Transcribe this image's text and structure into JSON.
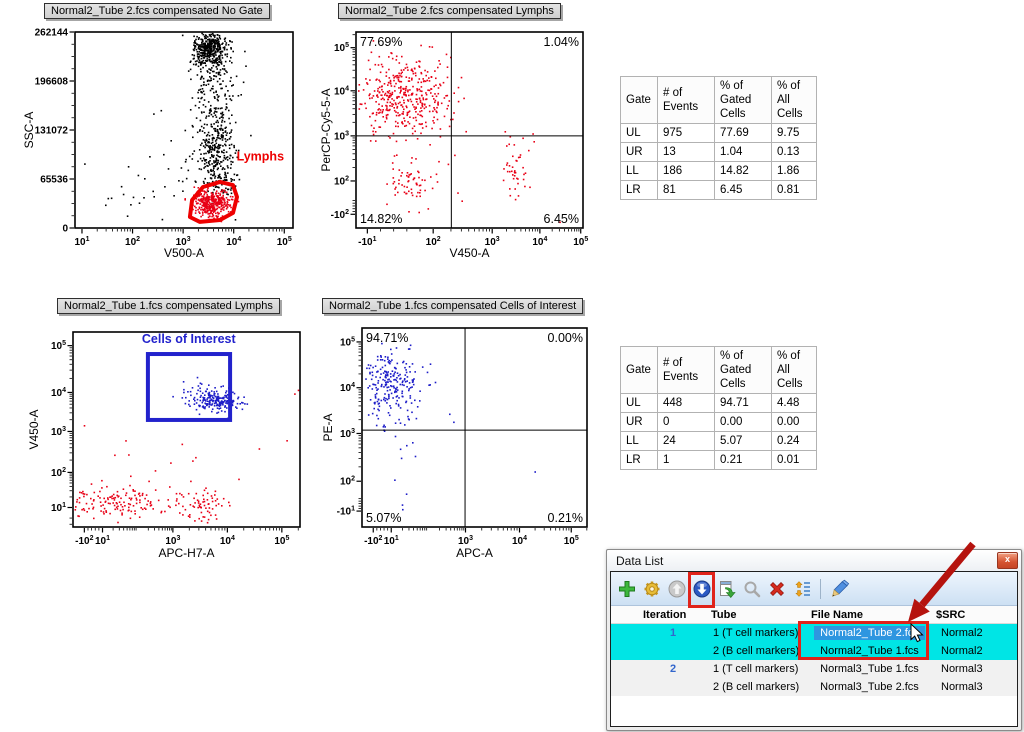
{
  "colors": {
    "dot_black": "#000000",
    "dot_red": "#e80016",
    "dot_blue": "#1c1cc8",
    "gate_red": "#ee0000",
    "gate_blue": "#2222cc",
    "highlight_cyan": "#00e5e5",
    "selection_blue": "#2e96e0",
    "annotation_red": "#c01412",
    "iteration_blue": "#3366cc"
  },
  "chart_data": {
    "plots": [
      {
        "id": "p1",
        "type": "scatter",
        "title": "Normal2_Tube 2.fcs compensated No Gate",
        "xlabel": "V500-A",
        "ylabel": "SSC-A",
        "x_scale": "log",
        "y_scale": "linear",
        "x_ticks": [
          {
            "f": 0.032,
            "l": "10^1"
          },
          {
            "f": 0.264,
            "l": "10^2"
          },
          {
            "f": 0.496,
            "l": "10^3"
          },
          {
            "f": 0.728,
            "l": "10^4"
          },
          {
            "f": 0.96,
            "l": "10^5"
          }
        ],
        "y_ticks": [
          {
            "f": 0.0,
            "l": "262144"
          },
          {
            "f": 0.25,
            "l": "196608"
          },
          {
            "f": 0.5,
            "l": "131072"
          },
          {
            "f": 0.75,
            "l": "65536"
          },
          {
            "f": 1.0,
            "l": "0"
          }
        ],
        "gate": {
          "shape": "polygon",
          "label": "Lymphs",
          "color": "#ee0000",
          "label_pos": [
            0.85,
            0.655
          ],
          "points": [
            [
              0.527,
              0.944
            ],
            [
              0.537,
              0.857
            ],
            [
              0.587,
              0.791
            ],
            [
              0.665,
              0.765
            ],
            [
              0.725,
              0.781
            ],
            [
              0.743,
              0.842
            ],
            [
              0.725,
              0.923
            ],
            [
              0.665,
              0.959
            ],
            [
              0.573,
              0.969
            ]
          ]
        },
        "quadrants": null,
        "seed": 7,
        "clusters": [
          {
            "fx": 0.62,
            "fy": 0.09,
            "sx": 0.035,
            "sy": 0.055,
            "n": 420,
            "color": "#000000"
          },
          {
            "fx": 0.63,
            "fy": 0.33,
            "sx": 0.05,
            "sy": 0.17,
            "n": 230,
            "color": "#000000"
          },
          {
            "fx": 0.655,
            "fy": 0.62,
            "sx": 0.045,
            "sy": 0.1,
            "n": 260,
            "color": "#000000"
          },
          {
            "fx": 0.45,
            "fy": 0.74,
            "sx": 0.13,
            "sy": 0.11,
            "n": 28,
            "color": "#000000"
          },
          {
            "fx": 0.25,
            "fy": 0.86,
            "sx": 0.09,
            "sy": 0.05,
            "n": 12,
            "color": "#000000"
          },
          {
            "fx": 0.67,
            "fy": 0.77,
            "sx": 0.035,
            "sy": 0.03,
            "n": 45,
            "color": "#000000"
          },
          {
            "fx": 0.63,
            "fy": 0.875,
            "sx": 0.042,
            "sy": 0.032,
            "n": 380,
            "color": "#e80016"
          }
        ]
      },
      {
        "id": "p2",
        "type": "scatter",
        "title": "Normal2_Tube 2.fcs compensated Lymphs",
        "xlabel": "V450-A",
        "ylabel": "PerCP-Cy5-5-A",
        "x_scale": "biexp",
        "y_scale": "biexp",
        "x_ticks": [
          {
            "f": 0.05,
            "l": "-10^1"
          },
          {
            "f": 0.34,
            "l": "10^2"
          },
          {
            "f": 0.6,
            "l": "10^3"
          },
          {
            "f": 0.81,
            "l": "10^4"
          },
          {
            "f": 0.99,
            "l": "10^5"
          }
        ],
        "y_ticks": [
          {
            "f": 0.08,
            "l": "10^5"
          },
          {
            "f": 0.3,
            "l": "10^4"
          },
          {
            "f": 0.53,
            "l": "10^3"
          },
          {
            "f": 0.76,
            "l": "10^2"
          },
          {
            "f": 0.93,
            "l": "-10^2"
          }
        ],
        "gate": null,
        "quadrants": {
          "v": 0.42,
          "h": 0.53,
          "UL": "77.69%",
          "UR": "1.04%",
          "LL": "14.82%",
          "LR": "6.45%"
        },
        "seed": 11,
        "clusters": [
          {
            "fx": 0.21,
            "fy": 0.33,
            "sx": 0.095,
            "sy": 0.1,
            "n": 420,
            "color": "#e80016"
          },
          {
            "fx": 0.25,
            "fy": 0.79,
            "sx": 0.055,
            "sy": 0.065,
            "n": 65,
            "color": "#e80016"
          },
          {
            "fx": 0.7,
            "fy": 0.72,
            "sx": 0.035,
            "sy": 0.1,
            "n": 42,
            "color": "#e80016"
          },
          {
            "fx": 0.5,
            "fy": 0.58,
            "sx": 0.25,
            "sy": 0.2,
            "n": 9,
            "color": "#e80016"
          },
          {
            "fx": 0.9,
            "fy": 0.975,
            "sx": 0.004,
            "sy": 0.004,
            "n": 1,
            "color": "#e80016"
          }
        ]
      },
      {
        "id": "p3",
        "type": "scatter",
        "title": "Normal2_Tube 1.fcs compensated Lymphs",
        "xlabel": "APC-H7-A",
        "ylabel": "V450-A",
        "x_scale": "biexp",
        "y_scale": "biexp",
        "x_ticks": [
          {
            "f": 0.05,
            "l": "-10^2"
          },
          {
            "f": 0.13,
            "l": "10^1"
          },
          {
            "f": 0.44,
            "l": "10^3"
          },
          {
            "f": 0.68,
            "l": "10^4"
          },
          {
            "f": 0.92,
            "l": "10^5"
          }
        ],
        "y_ticks": [
          {
            "f": 0.07,
            "l": "10^5"
          },
          {
            "f": 0.31,
            "l": "10^4"
          },
          {
            "f": 0.51,
            "l": "10^3"
          },
          {
            "f": 0.72,
            "l": "10^2"
          },
          {
            "f": 0.9,
            "l": "10^1"
          }
        ],
        "gate": {
          "shape": "rect",
          "label": "Cells of Interest",
          "color": "#2222cc",
          "label_pos": [
            0.51,
            0.056
          ],
          "x1": 0.33,
          "y1": 0.113,
          "x2": 0.692,
          "y2": 0.451
        },
        "quadrants": null,
        "seed": 23,
        "clusters": [
          {
            "fx": 0.2,
            "fy": 0.87,
            "sx": 0.13,
            "sy": 0.042,
            "n": 150,
            "color": "#e80016"
          },
          {
            "fx": 0.57,
            "fy": 0.885,
            "sx": 0.05,
            "sy": 0.055,
            "n": 65,
            "color": "#e80016"
          },
          {
            "fx": 0.33,
            "fy": 0.72,
            "sx": 0.18,
            "sy": 0.1,
            "n": 18,
            "color": "#e80016"
          },
          {
            "fx": 0.97,
            "fy": 0.34,
            "sx": 0.015,
            "sy": 0.02,
            "n": 2,
            "color": "#e80016"
          },
          {
            "fx": 0.625,
            "fy": 0.35,
            "sx": 0.05,
            "sy": 0.028,
            "n": 210,
            "color": "#1c1cc8"
          },
          {
            "fx": 0.52,
            "fy": 0.31,
            "sx": 0.045,
            "sy": 0.05,
            "n": 14,
            "color": "#1c1cc8"
          },
          {
            "fx": 0.56,
            "fy": 0.16,
            "sx": 0.02,
            "sy": 0.04,
            "n": 2,
            "color": "#1c1cc8"
          }
        ]
      },
      {
        "id": "p4",
        "type": "scatter",
        "title": "Normal2_Tube 1.fcs compensated Cells of Interest",
        "xlabel": "APC-A",
        "ylabel": "PE-A",
        "x_scale": "biexp",
        "y_scale": "biexp",
        "x_ticks": [
          {
            "f": 0.05,
            "l": "-10^2"
          },
          {
            "f": 0.13,
            "l": "10^1"
          },
          {
            "f": 0.46,
            "l": "10^3"
          },
          {
            "f": 0.7,
            "l": "10^4"
          },
          {
            "f": 0.93,
            "l": "10^5"
          }
        ],
        "y_ticks": [
          {
            "f": 0.07,
            "l": "10^5"
          },
          {
            "f": 0.3,
            "l": "10^4"
          },
          {
            "f": 0.53,
            "l": "10^3"
          },
          {
            "f": 0.77,
            "l": "10^2"
          },
          {
            "f": 0.92,
            "l": "-10^1"
          }
        ],
        "gate": null,
        "quadrants": {
          "v": 0.458,
          "h": 0.513,
          "UL": "94.71%",
          "UR": "0.00%",
          "LL": "5.07%",
          "LR": "0.21%"
        },
        "seed": 31,
        "clusters": [
          {
            "fx": 0.125,
            "fy": 0.28,
            "sx": 0.07,
            "sy": 0.085,
            "n": 240,
            "color": "#1c1cc8"
          },
          {
            "fx": 0.17,
            "fy": 0.47,
            "sx": 0.05,
            "sy": 0.05,
            "n": 14,
            "color": "#1c1cc8"
          },
          {
            "fx": 0.2,
            "fy": 0.62,
            "sx": 0.03,
            "sy": 0.04,
            "n": 4,
            "color": "#1c1cc8"
          },
          {
            "fx": 0.17,
            "fy": 0.84,
            "sx": 0.035,
            "sy": 0.05,
            "n": 4,
            "color": "#1c1cc8"
          },
          {
            "fx": 0.4,
            "fy": 0.45,
            "sx": 0.02,
            "sy": 0.02,
            "n": 2,
            "color": "#1c1cc8"
          },
          {
            "fx": 0.77,
            "fy": 0.73,
            "sx": 0.004,
            "sy": 0.004,
            "n": 1,
            "color": "#1c1cc8"
          }
        ]
      }
    ],
    "stats_tables": [
      {
        "headers": [
          "Gate",
          "# of\nEvents",
          "% of\nGated\nCells",
          "% of\nAll\nCells"
        ],
        "rows": [
          [
            "UL",
            "975",
            "77.69",
            "9.75"
          ],
          [
            "UR",
            "13",
            "1.04",
            "0.13"
          ],
          [
            "LL",
            "186",
            "14.82",
            "1.86"
          ],
          [
            "LR",
            "81",
            "6.45",
            "0.81"
          ]
        ]
      },
      {
        "headers": [
          "Gate",
          "# of\nEvents",
          "% of\nGated\nCells",
          "% of\nAll\nCells"
        ],
        "rows": [
          [
            "UL",
            "448",
            "94.71",
            "4.48"
          ],
          [
            "UR",
            "0",
            "0.00",
            "0.00"
          ],
          [
            "LL",
            "24",
            "5.07",
            "0.24"
          ],
          [
            "LR",
            "1",
            "0.21",
            "0.01"
          ]
        ]
      }
    ]
  },
  "data_list": {
    "title": "Data List",
    "close_glyph": "x",
    "toolbar": [
      {
        "name": "add-icon"
      },
      {
        "name": "settings-icon"
      },
      {
        "name": "move-up-icon"
      },
      {
        "name": "move-down-icon",
        "highlighted": true
      },
      {
        "name": "export-icon"
      },
      {
        "name": "search-icon"
      },
      {
        "name": "delete-icon"
      },
      {
        "name": "reorder-icon"
      },
      {
        "name": "separator"
      },
      {
        "name": "edit-icon"
      }
    ],
    "columns": [
      "",
      "Iteration",
      "Tube",
      "File Name",
      "$SRC"
    ],
    "rows": [
      {
        "iteration": "1",
        "tube": "1 (T cell markers)",
        "file": "Normal2_Tube 2.fcs",
        "src": "Normal2",
        "highlighted": true,
        "selected_file": true
      },
      {
        "iteration": "",
        "tube": "2 (B cell markers)",
        "file": "Normal2_Tube 1.fcs",
        "src": "Normal2",
        "highlighted": true,
        "selected_file": false
      },
      {
        "iteration": "2",
        "tube": "1 (T cell markers)",
        "file": "Normal3_Tube 1.fcs",
        "src": "Normal3",
        "highlighted": false,
        "selected_file": false
      },
      {
        "iteration": "",
        "tube": "2 (B cell markers)",
        "file": "Normal3_Tube 2.fcs",
        "src": "Normal3",
        "highlighted": false,
        "selected_file": false
      }
    ]
  }
}
